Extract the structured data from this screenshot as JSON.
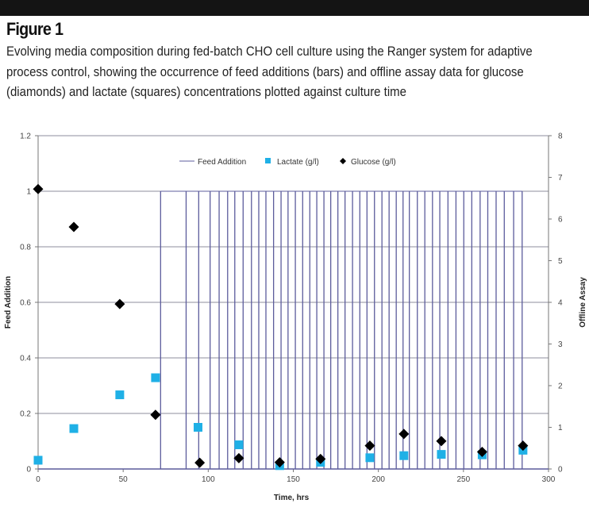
{
  "figure": {
    "title": "Figure 1",
    "caption": "Evolving media composition during fed-batch CHO cell culture using the Ranger system for adaptive process control, showing the occurrence of feed additions (bars) and offline assay data for glucose (diamonds) and lactate (squares) concentrations plotted against culture time"
  },
  "chart_data": {
    "type": "scatter",
    "xlabel": "Time, hrs",
    "ylabel": "Feed Addition",
    "y2label": "Offline Assay",
    "xlim": [
      0,
      300
    ],
    "ylim": [
      0,
      1.2
    ],
    "y2lim": [
      0,
      8
    ],
    "xticks": [
      "0",
      "50",
      "100",
      "150",
      "200",
      "250",
      "300"
    ],
    "yticks": [
      "0",
      "0.2",
      "0.4",
      "0.6",
      "0.8",
      "1",
      "1.2"
    ],
    "y2ticks": [
      "0",
      "1",
      "2",
      "3",
      "4",
      "5",
      "6",
      "7",
      "8"
    ],
    "grid": true,
    "legend_position": "top-center",
    "colors": {
      "feed": "#5c5c9c",
      "lactate": "#1fb0e6",
      "glucose": "#000000",
      "grid": "#8c8c9c"
    },
    "series": [
      {
        "name": "Feed Addition",
        "kind": "bars",
        "axis": "left",
        "value": 1,
        "x": [
          72,
          87,
          94.4,
          101.1,
          106.4,
          111.4,
          115.6,
          120.5,
          125.4,
          129.7,
          133.9,
          138.4,
          142.8,
          146.9,
          151.2,
          155.5,
          159.7,
          163.8,
          168,
          172,
          176.2,
          180.4,
          184.8,
          189.1,
          193.3,
          197.7,
          202.1,
          206.3,
          210.5,
          214.5,
          218.2,
          222.9,
          227.3,
          231.8,
          236.1,
          240.9,
          245.6,
          250.2,
          254.9,
          259.8,
          264.3,
          269.2,
          274,
          279.5,
          284.5
        ]
      },
      {
        "name": "Lactate (g/l)",
        "kind": "square",
        "axis": "right",
        "x": [
          0,
          21,
          48,
          69,
          94,
          118,
          142,
          166,
          195,
          215,
          237,
          261,
          285
        ],
        "y": [
          0.21,
          0.97,
          1.78,
          2.19,
          1.0,
          0.58,
          0.08,
          0.16,
          0.27,
          0.32,
          0.35,
          0.34,
          0.45
        ]
      },
      {
        "name": "Glucose (g/l)",
        "kind": "diamond",
        "axis": "right",
        "x": [
          0,
          21,
          48,
          69,
          95,
          118,
          142,
          166,
          195,
          215,
          237,
          261,
          285
        ],
        "y": [
          6.72,
          5.81,
          3.96,
          1.3,
          0.15,
          0.26,
          0.16,
          0.24,
          0.56,
          0.84,
          0.67,
          0.41,
          0.56
        ]
      }
    ]
  }
}
